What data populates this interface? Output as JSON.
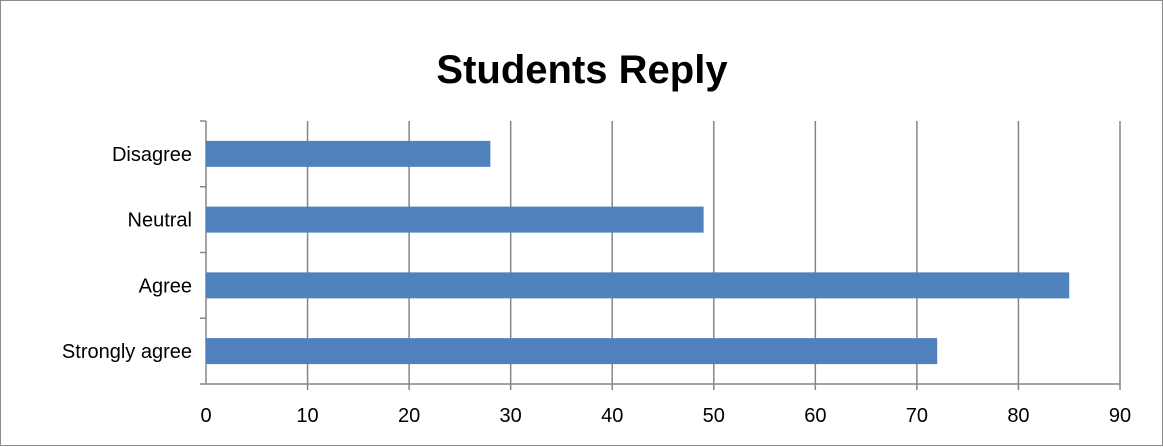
{
  "chart_data": {
    "type": "bar",
    "orientation": "horizontal",
    "title": "Students Reply",
    "xlabel": "",
    "ylabel": "",
    "categories": [
      "Strongly agree",
      "Agree",
      "Neutral",
      "Disagree"
    ],
    "values": [
      72,
      85,
      49,
      28
    ],
    "xlim": [
      0,
      90
    ],
    "xticks": [
      0,
      10,
      20,
      30,
      40,
      50,
      60,
      70,
      80,
      90
    ],
    "grid": "vertical",
    "legend": "none",
    "bar_color": "#4f81bd",
    "grid_color": "#868686"
  }
}
